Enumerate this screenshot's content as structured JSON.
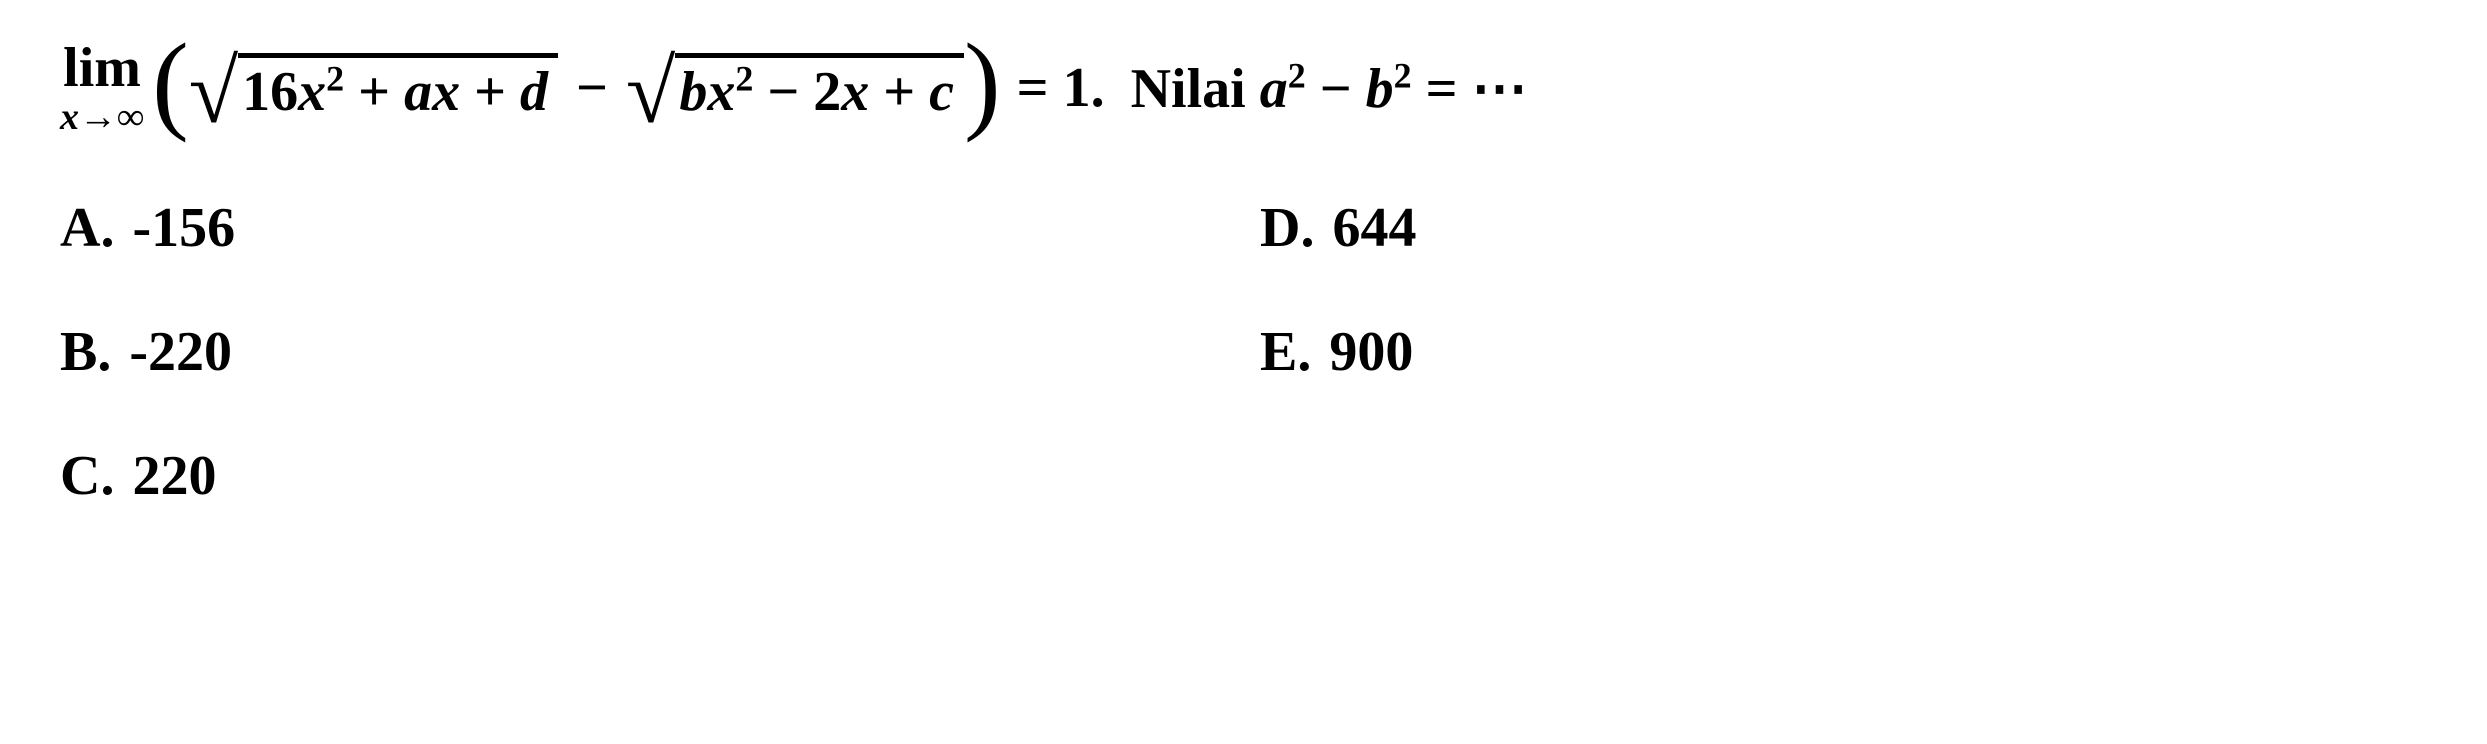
{
  "question": {
    "limit_label": "lim",
    "limit_var": "x",
    "limit_arrow": "→",
    "limit_target": "∞",
    "radicand1": {
      "coef1": "16",
      "var1": "x",
      "exp1": "2",
      "op1": " + ",
      "coef2": "a",
      "var2": "x",
      "op2": " + ",
      "coef3": "d"
    },
    "middle_op": "−",
    "radicand2": {
      "coef1": "b",
      "var1": "x",
      "exp1": "2",
      "op1": " − ",
      "coef2": "2",
      "var2": "x",
      "op2": " + ",
      "coef3": "c"
    },
    "rhs_eq": "= 1.",
    "trailing_text": "Nilai ",
    "expr_a": "a",
    "expr_exp": "2",
    "expr_minus": " − ",
    "expr_b": "b",
    "expr_eq": " = ⋯"
  },
  "options": {
    "A": {
      "letter": "A.",
      "value": "-156"
    },
    "B": {
      "letter": "B.",
      "value": "-220"
    },
    "C": {
      "letter": "C.",
      "value": "220"
    },
    "D": {
      "letter": "D.",
      "value": "644"
    },
    "E": {
      "letter": "E.",
      "value": "900"
    }
  },
  "style": {
    "text_color": "#000000",
    "background_color": "#ffffff",
    "main_fontsize": 56,
    "superscript_fontsize": 36,
    "limit_sub_fontsize": 38,
    "font_weight": "bold",
    "font_family": "Cambria Math, Times New Roman, serif"
  }
}
